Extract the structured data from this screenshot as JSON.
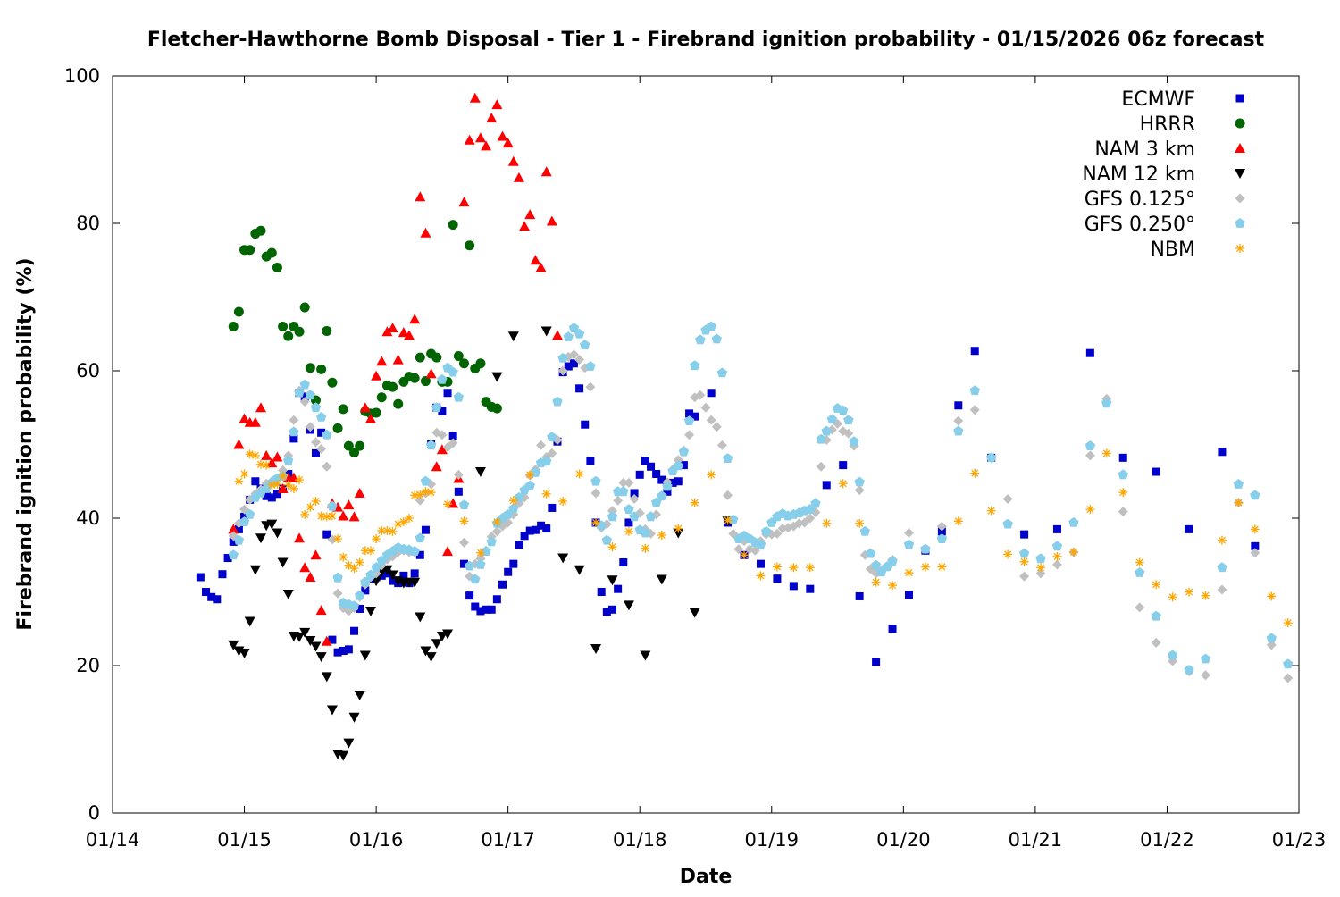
{
  "chart_data": {
    "type": "scatter",
    "title": "Fletcher-Hawthorne Bomb Disposal - Tier 1 - Firebrand ignition probability - 01/15/2026 06z forecast",
    "xlabel": "Date",
    "ylabel": "Firebrand ignition probability (%)",
    "x_units": "hours since 01/14 00z",
    "xlim": [
      0,
      216
    ],
    "ylim": [
      0,
      100
    ],
    "x_ticks": [
      {
        "value": 0,
        "label": "01/14"
      },
      {
        "value": 24,
        "label": "01/15"
      },
      {
        "value": 48,
        "label": "01/16"
      },
      {
        "value": 72,
        "label": "01/17"
      },
      {
        "value": 96,
        "label": "01/18"
      },
      {
        "value": 120,
        "label": "01/19"
      },
      {
        "value": 144,
        "label": "01/20"
      },
      {
        "value": 168,
        "label": "01/21"
      },
      {
        "value": 192,
        "label": "01/22"
      },
      {
        "value": 216,
        "label": "01/23"
      }
    ],
    "y_ticks": [
      {
        "value": 0,
        "label": "0"
      },
      {
        "value": 20,
        "label": "20"
      },
      {
        "value": 40,
        "label": "40"
      },
      {
        "value": 60,
        "label": "60"
      },
      {
        "value": 80,
        "label": "80"
      },
      {
        "value": 100,
        "label": "100"
      }
    ],
    "grid": false,
    "legend_position": "top-right",
    "series": [
      {
        "name": "ECMWF",
        "color": "#0000cc",
        "marker": "square",
        "segments": [
          {
            "start": 16,
            "step": 1,
            "values": [
              32,
              30,
              29.3,
              29,
              32.4,
              34.6,
              36.8,
              38.5,
              40.2,
              42.5,
              45,
              44,
              43,
              42.8,
              43.3,
              44,
              46,
              50.8,
              57,
              56.5,
              52,
              48.8,
              51.6,
              37.8,
              23.5,
              21.8,
              22,
              22.2,
              24.7,
              27.7,
              30.2,
              31.8,
              32,
              32.2,
              32.5,
              31.5,
              31.2,
              32.2,
              31.2,
              32.5,
              35,
              38.4,
              50,
              55,
              54.5,
              57,
              51.2,
              43.6,
              33.8,
              29.5,
              28,
              27.4,
              27.6,
              27.6,
              29,
              31,
              32.7,
              33.8,
              36.4,
              37.6,
              38.3,
              38.4,
              39,
              38.6,
              41.4,
              50.4,
              59.8,
              60.6,
              61,
              57.6,
              52.7,
              47.8,
              39.4,
              30,
              27.3,
              27.6,
              30.4,
              34,
              39.4,
              43.4,
              45.9,
              47.8,
              47,
              46,
              45.2,
              43.6,
              44.8,
              45,
              47.2,
              54.2,
              53.8
            ]
          },
          {
            "start": 109,
            "step": 3,
            "values": [
              57,
              39.4,
              35,
              33.8,
              31.8,
              30.8,
              30.4,
              44.5,
              47.2,
              29.4,
              20.5,
              25,
              29.6,
              35.6,
              38.2,
              55.3,
              62.7
            ]
          },
          {
            "start": 160,
            "step": 6,
            "values": [
              48.2,
              37.8,
              38.5,
              62.4,
              48.2,
              46.3,
              38.5,
              49,
              36.2
            ]
          }
        ]
      },
      {
        "name": "HRRR",
        "color": "#006400",
        "marker": "circle",
        "segments": [
          {
            "start": 22,
            "step": 1,
            "values": [
              66,
              68,
              76.4,
              76.4,
              78.6,
              79,
              75.5,
              76,
              74,
              66,
              64.7,
              66,
              65.3,
              68.6,
              60.4,
              56,
              60.2,
              65.4,
              58.4,
              52.2,
              54.8,
              49.8,
              48.9,
              49.8,
              54.5,
              54.2,
              54.3,
              56.4,
              58,
              57.8,
              55.5,
              58.5,
              59.2,
              59,
              61.8,
              58.6,
              62.3,
              61.8,
              58.5,
              58.5,
              79.8,
              62,
              61,
              77,
              60.3,
              61,
              55.8,
              55.1,
              54.9
            ]
          }
        ]
      },
      {
        "name": "NAM 3 km",
        "color": "#ff0000",
        "marker": "triangle-up",
        "segments": [
          {
            "start": 22,
            "step": 1,
            "values": [
              38.5,
              50,
              53.5,
              53,
              53,
              55,
              48.5,
              47.5,
              48.3,
              44,
              45.5,
              45.5,
              37.3,
              33.3,
              32,
              35,
              27.5,
              23.3,
              42,
              41.5,
              40.3,
              41.8,
              40.2,
              43.4,
              55,
              53.5,
              59.3,
              61.3,
              65.3,
              65.8,
              61.5,
              65.2,
              64.8,
              67,
              83.6,
              78.7,
              59.6,
              47,
              49.3,
              35.5,
              42,
              45.4,
              82.9,
              91.3,
              97,
              91.6,
              90.5,
              94.3,
              96.1,
              91.8,
              90.9,
              88.4,
              86.2,
              79.6,
              81.2,
              75,
              74,
              87,
              80.3,
              64.8
            ]
          }
        ]
      },
      {
        "name": "NAM 12 km",
        "color": "#000000",
        "marker": "triangle-down",
        "segments": [
          {
            "start": 22,
            "step": 1,
            "values": [
              22.8,
              22,
              21.7,
              26,
              33,
              37.3,
              39,
              39.2,
              38,
              34,
              29.7,
              24,
              23.9,
              24.5,
              23.4,
              22.6,
              21.2,
              18.5,
              14,
              8,
              7.8,
              9.5,
              13,
              16,
              21.4,
              27.4,
              31.5,
              32.7,
              33,
              32.3,
              31.5,
              31.2,
              31.3,
              31.3,
              26.6,
              22,
              21.2,
              23,
              24,
              24.3
            ]
          },
          {
            "start": 67,
            "step": 3,
            "values": [
              46.3,
              59.2,
              64.7,
              null,
              65.4,
              34.6,
              33,
              22.3,
              31.6,
              28.2,
              21.4,
              31.7,
              38,
              27.2,
              null,
              39.6
            ]
          }
        ]
      },
      {
        "name": "GFS 0.125°",
        "color": "#c0c0c0",
        "marker": "diamond",
        "segments": [
          {
            "start": 22,
            "step": 1,
            "values": [
              37.6,
              39.3,
              41.2,
              42.5,
              43.3,
              43.9,
              44.7,
              45,
              45.3,
              46.5,
              48.5,
              53.3,
              57.3,
              55.8,
              52.4,
              50.3,
              49.4,
              47,
              37.1,
              29.8,
              27.8,
              27.4,
              27.8,
              29.3,
              31,
              32,
              32.5,
              33.6,
              34.4,
              34.8,
              35.4,
              35.6,
              35.4,
              35.4,
              42.4,
              43.4,
              44.6,
              51.6,
              51.3,
              49.6,
              50.2,
              45.9,
              36.7,
              32.1,
              33.8,
              34.5,
              35.6,
              37.5,
              38.2,
              38.9,
              39.4,
              40.5,
              42,
              42.8,
              45.8,
              46.6,
              49.9,
              48.3,
              48.8,
              50.6,
              60,
              61.9,
              62.2,
              61.5,
              60.4,
              57.8,
              43.4,
              38.7,
              39.2,
              41,
              42.4,
              44.8,
              44.8,
              42.6,
              40.7,
              38.5,
              37.9,
              40.5,
              43,
              44.9,
              46.6,
              47.9,
              49.2,
              51.3,
              56.4,
              56.7,
              55,
              53.3,
              52.4,
              49.9,
              43.1,
              37.9,
              35.8,
              36.9,
              35.8,
              35.6,
              36.9,
              37.8,
              37.8,
              37.9,
              38.6,
              38.7,
              38.9,
              39.3,
              39.4,
              40,
              40.8,
              47,
              50.6,
              52,
              52.8,
              51.8,
              51.5,
              49.8,
              43.8,
              35,
              33.1,
              32.5,
              32.9,
              33.5,
              34.4
            ]
          },
          {
            "start": 145,
            "step": 3,
            "values": [
              38,
              35.8,
              38.9,
              53.2,
              54.7,
              48.2,
              42.6,
              32.1,
              32.5,
              33.7,
              35.4,
              48.5,
              56.2,
              40.9,
              27.9,
              23.1,
              20.6,
              19.2,
              18.7,
              30.3,
              42.1,
              35.3,
              22.8,
              18.3
            ]
          }
        ]
      },
      {
        "name": "GFS 0.250°",
        "color": "#87ceeb",
        "marker": "pentagon",
        "segments": [
          {
            "start": 22,
            "step": 1,
            "values": [
              35,
              37,
              39.5,
              40.5,
              42.8,
              43.4,
              44,
              44.8,
              45.4,
              45.7,
              47.8,
              51.7,
              57,
              58.1,
              56.7,
              55,
              53.7,
              51.3,
              41.6,
              31.9,
              28.5,
              28.3,
              28.1,
              29.5,
              31.3,
              32.3,
              33.3,
              34.2,
              35,
              35.5,
              36,
              35.8,
              35.7,
              35.5,
              37.3,
              45,
              49.9,
              55,
              58.8,
              60.4,
              59.8,
              56.4,
              41.8,
              33.5,
              31.7,
              33.7,
              35.5,
              36.8,
              39.3,
              40,
              40.5,
              41.3,
              42.8,
              43.8,
              44.4,
              46.2,
              47.5,
              47.7,
              51,
              55.8,
              61.7,
              64.6,
              65.8,
              65,
              63.5,
              60.6,
              45,
              39,
              37,
              40.2,
              43.6,
              43.6,
              41.2,
              40.2,
              38.4,
              38,
              40.2,
              42.1,
              43,
              44.3,
              46.4,
              47.1,
              49,
              53.2,
              60.7,
              64.2,
              65.5,
              66,
              64.3,
              59.7,
              48.1,
              39.8,
              37.2,
              37.6,
              37.2,
              36.7,
              36.4,
              38.2,
              39.4,
              40.2,
              40.6,
              40.3,
              40.5,
              40.7,
              41,
              41.2,
              42,
              50.7,
              51.8,
              53.4,
              54.9,
              54.6,
              53.3,
              50.4,
              44.9,
              38.2,
              35.2,
              33.6,
              32.7,
              33.4,
              34.1
            ]
          },
          {
            "start": 145,
            "step": 3,
            "values": [
              36.4,
              35.8,
              37.2,
              51.8,
              57.3,
              48.2,
              39.2,
              35.2,
              34.5,
              36.2,
              39.4,
              49.8,
              55.6,
              45.9,
              32.6,
              26.7,
              21.4,
              19.4,
              20.9,
              33.3,
              44.6,
              43.1,
              23.7,
              20.2
            ]
          }
        ]
      },
      {
        "name": "NBM",
        "color": "#ffa500",
        "marker": "asterisk",
        "segments": [
          {
            "start": 23,
            "step": 1,
            "values": [
              45,
              46,
              48.7,
              48.5,
              47.3,
              47.2,
              44.5,
              44.6,
              45.7,
              44.5,
              44,
              45.2,
              40.5,
              41.5,
              42.3,
              40.3,
              40.2,
              40.3,
              37.2,
              34.7,
              33.6,
              33.2,
              34,
              35.6,
              35.6,
              37.2,
              38.3,
              38.3,
              38.2,
              39.2,
              39.5,
              40,
              43.1,
              43.2,
              43.6,
              43.5
            ]
          },
          {
            "start": 61,
            "step": 3,
            "values": [
              41.9,
              39.6,
              35.3,
              39.5,
              42.4,
              45.9,
              43.3,
              42.3,
              46,
              39.4,
              36.1,
              38.2,
              35.9,
              37.7,
              38.6,
              42.1,
              45.9,
              39.7,
              35,
              32.2,
              33.4,
              33.3,
              33.3,
              39.3,
              44.7,
              39.3,
              31.3,
              30.9,
              32.6,
              33.4,
              33.4,
              39.6,
              46.1,
              41,
              35.1,
              34.1,
              33.3,
              34.8,
              35.4,
              41.2,
              48.8,
              43.5,
              34,
              31,
              29.3,
              30,
              29.5,
              37,
              42.1,
              38.5,
              29.4,
              25.8
            ]
          }
        ]
      }
    ]
  }
}
